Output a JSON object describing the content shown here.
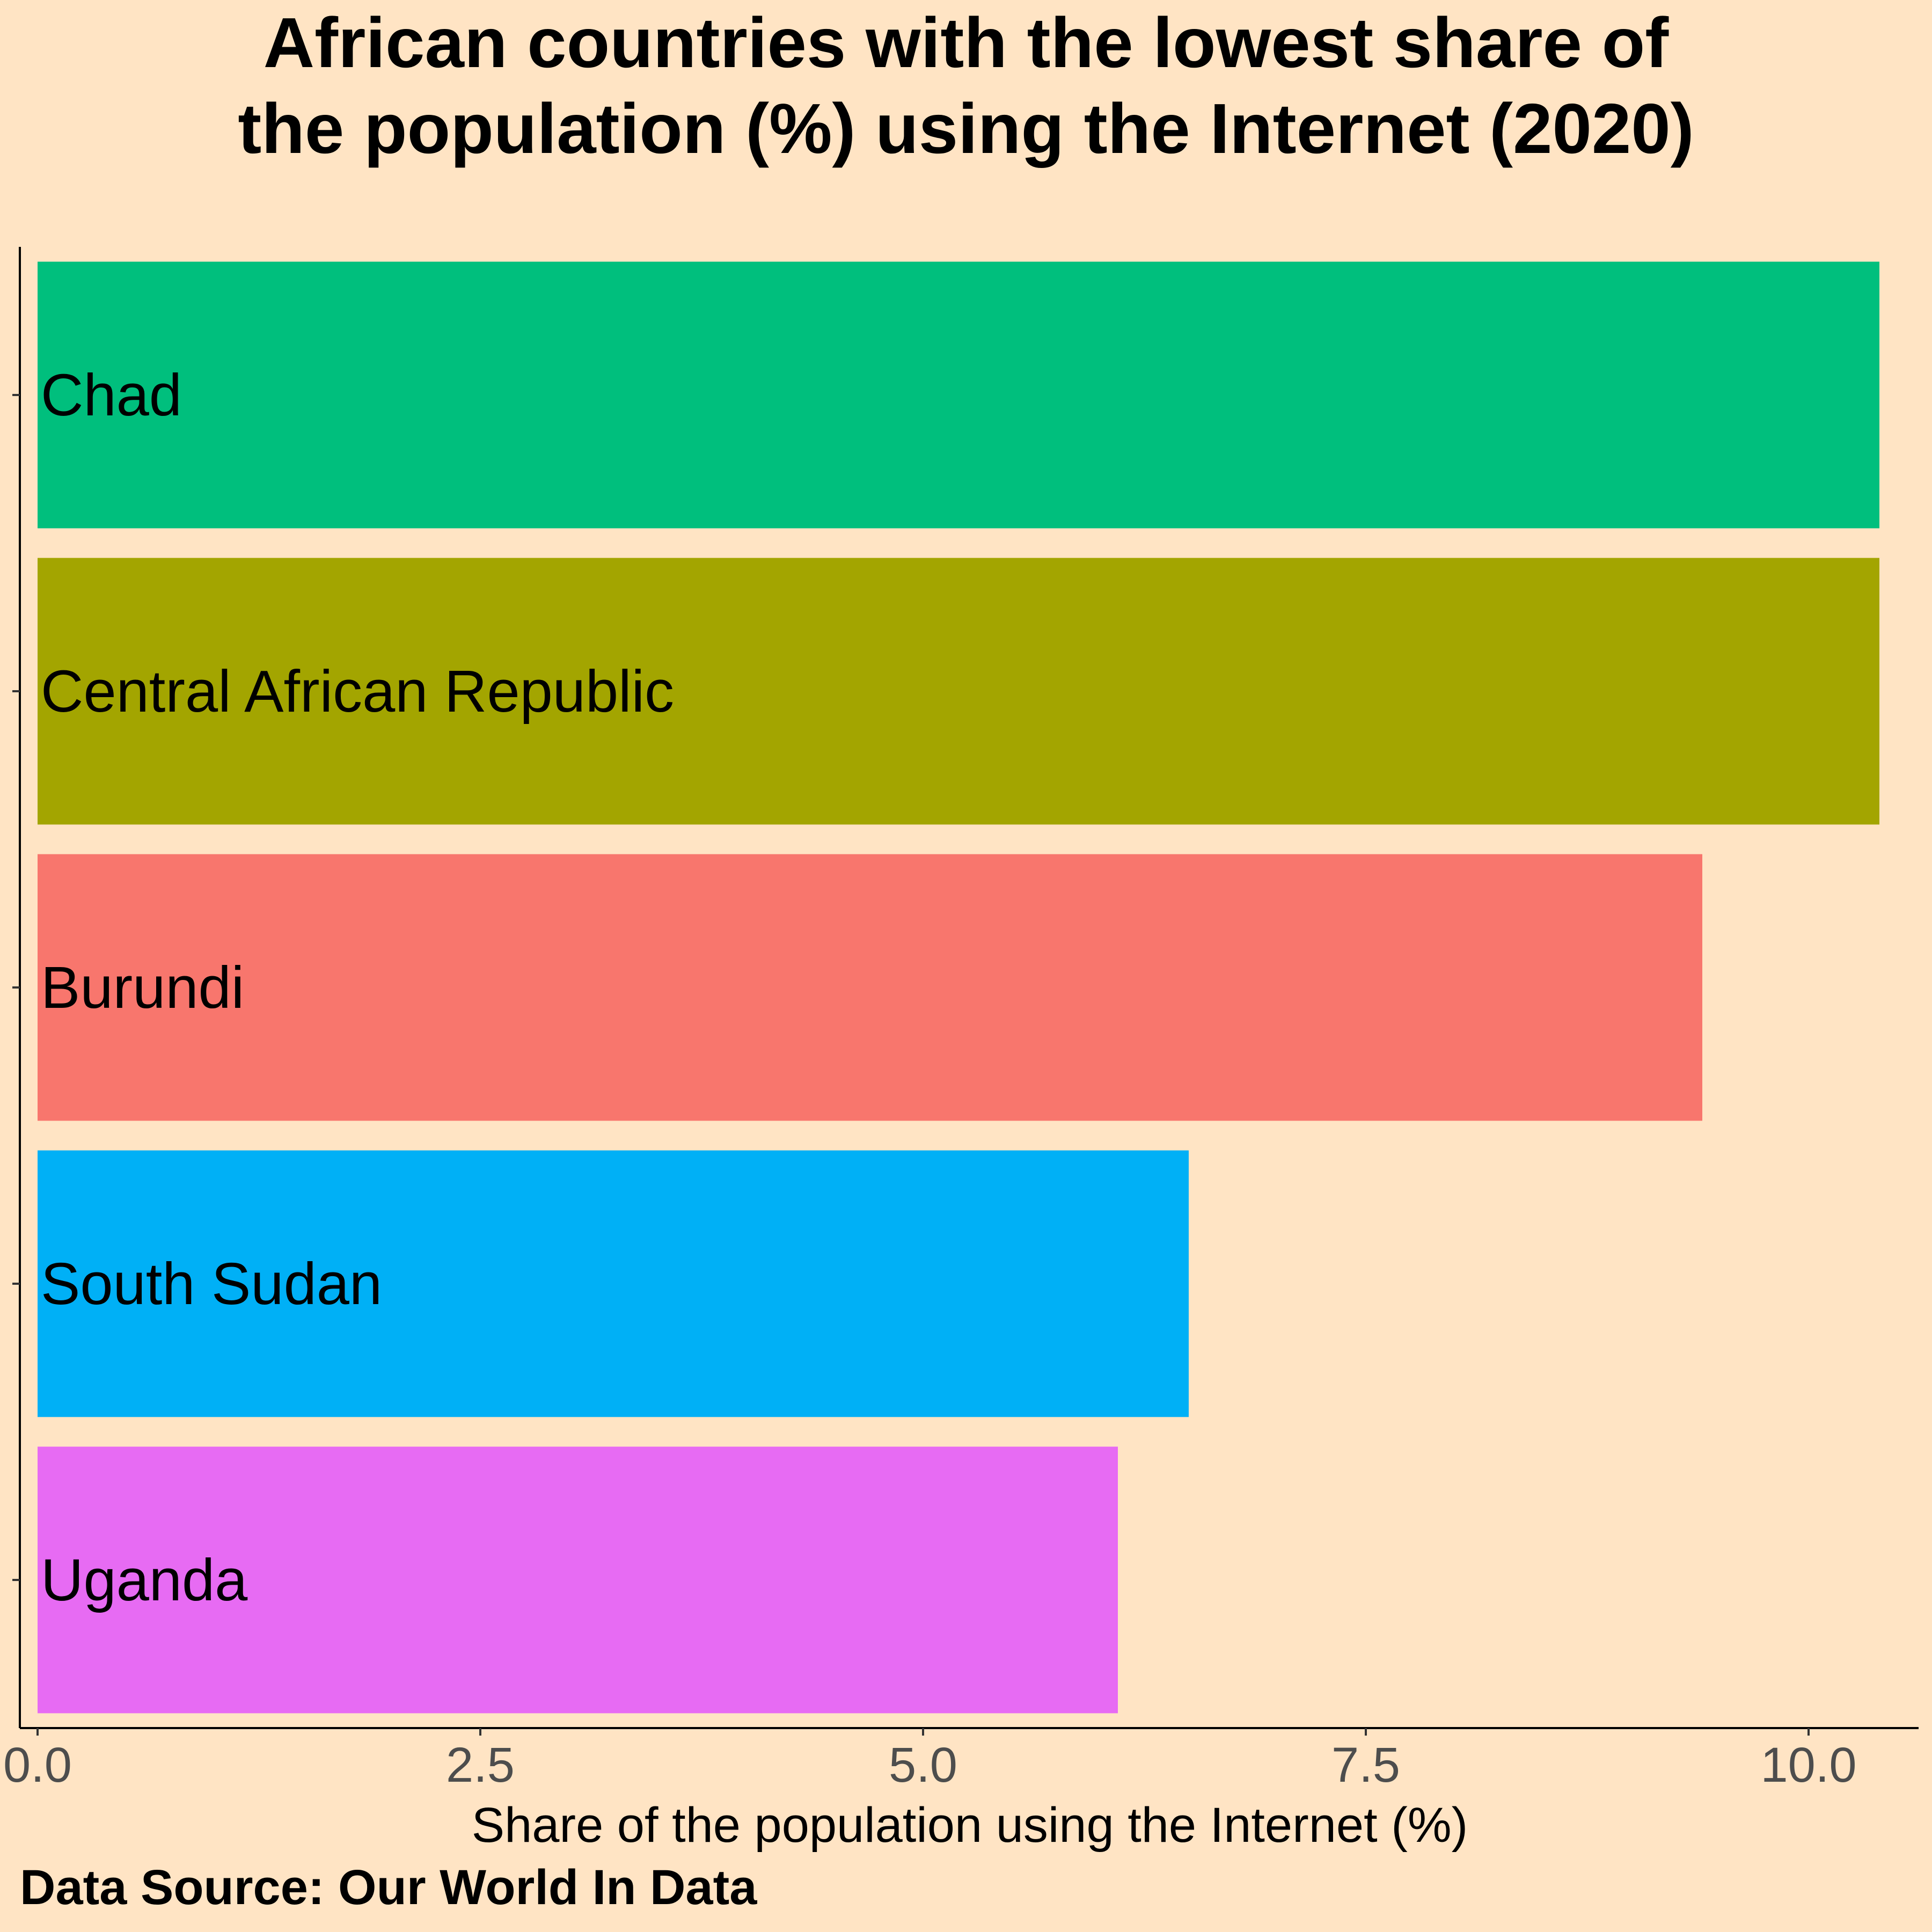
{
  "chart_data": {
    "type": "bar",
    "orientation": "horizontal",
    "title": "African countries with the lowest share of the population (%) using the Internet (2020)",
    "title_lines": [
      "African countries with the lowest share of",
      "the population (%) using the Internet (2020)"
    ],
    "xlabel": "Share of the population using the Internet (%)",
    "ylabel": "",
    "caption": "Data Source: Our World In Data",
    "xlim": [
      0,
      10.6
    ],
    "xticks": [
      0,
      2.5,
      5,
      7.5,
      10
    ],
    "xtick_labels": [
      "0.0",
      "2.5",
      "5.0",
      "7.5",
      "10.0"
    ],
    "categories": [
      "Chad",
      "Central African Republic",
      "Burundi",
      "South Sudan",
      "Uganda"
    ],
    "values": [
      10.4,
      10.4,
      9.4,
      6.5,
      6.1
    ],
    "colors": [
      "#00BF7D",
      "#A3A500",
      "#F8766D",
      "#00B0F6",
      "#E76BF3"
    ],
    "grid": false,
    "legend": "none",
    "background": "#FFE4C4"
  }
}
